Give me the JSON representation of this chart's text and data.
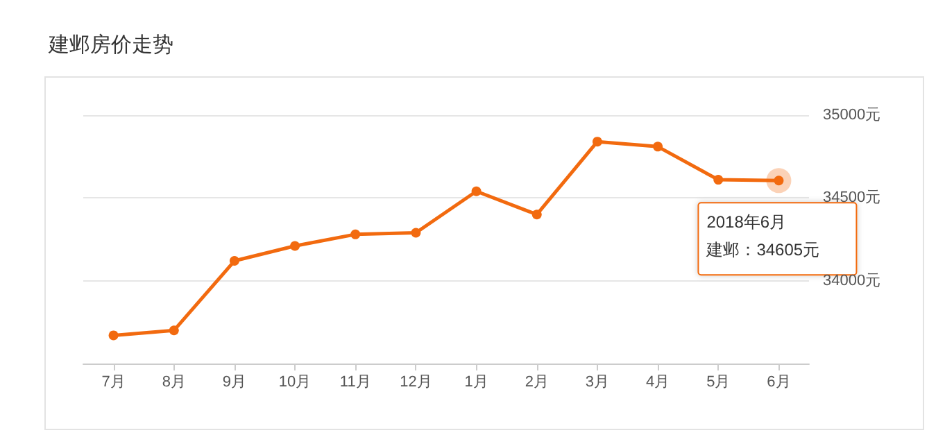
{
  "chart_data": {
    "type": "line",
    "title": "建邺房价走势",
    "categories": [
      "7月",
      "8月",
      "9月",
      "10月",
      "11月",
      "12月",
      "1月",
      "2月",
      "3月",
      "4月",
      "5月",
      "6月"
    ],
    "series": [
      {
        "color": "#f26a0f",
        "values": [
          33670,
          33700,
          34120,
          34210,
          34280,
          34290,
          34540,
          34400,
          34840,
          34810,
          34610,
          34605
        ]
      }
    ],
    "ylim": [
      33500,
      35000
    ],
    "yticks": [
      {
        "value": 33500,
        "label": null
      },
      {
        "value": 34000,
        "label": "34000元"
      },
      {
        "value": 34500,
        "label": "34500元"
      },
      {
        "value": 35000,
        "label": "35000元"
      }
    ],
    "grid": "y",
    "marker": "circle",
    "line_style": "solid",
    "annotations": [
      {
        "text": "2018年6月",
        "x": "6月",
        "y": 34605
      },
      "建邺：34605元"
    ]
  }
}
